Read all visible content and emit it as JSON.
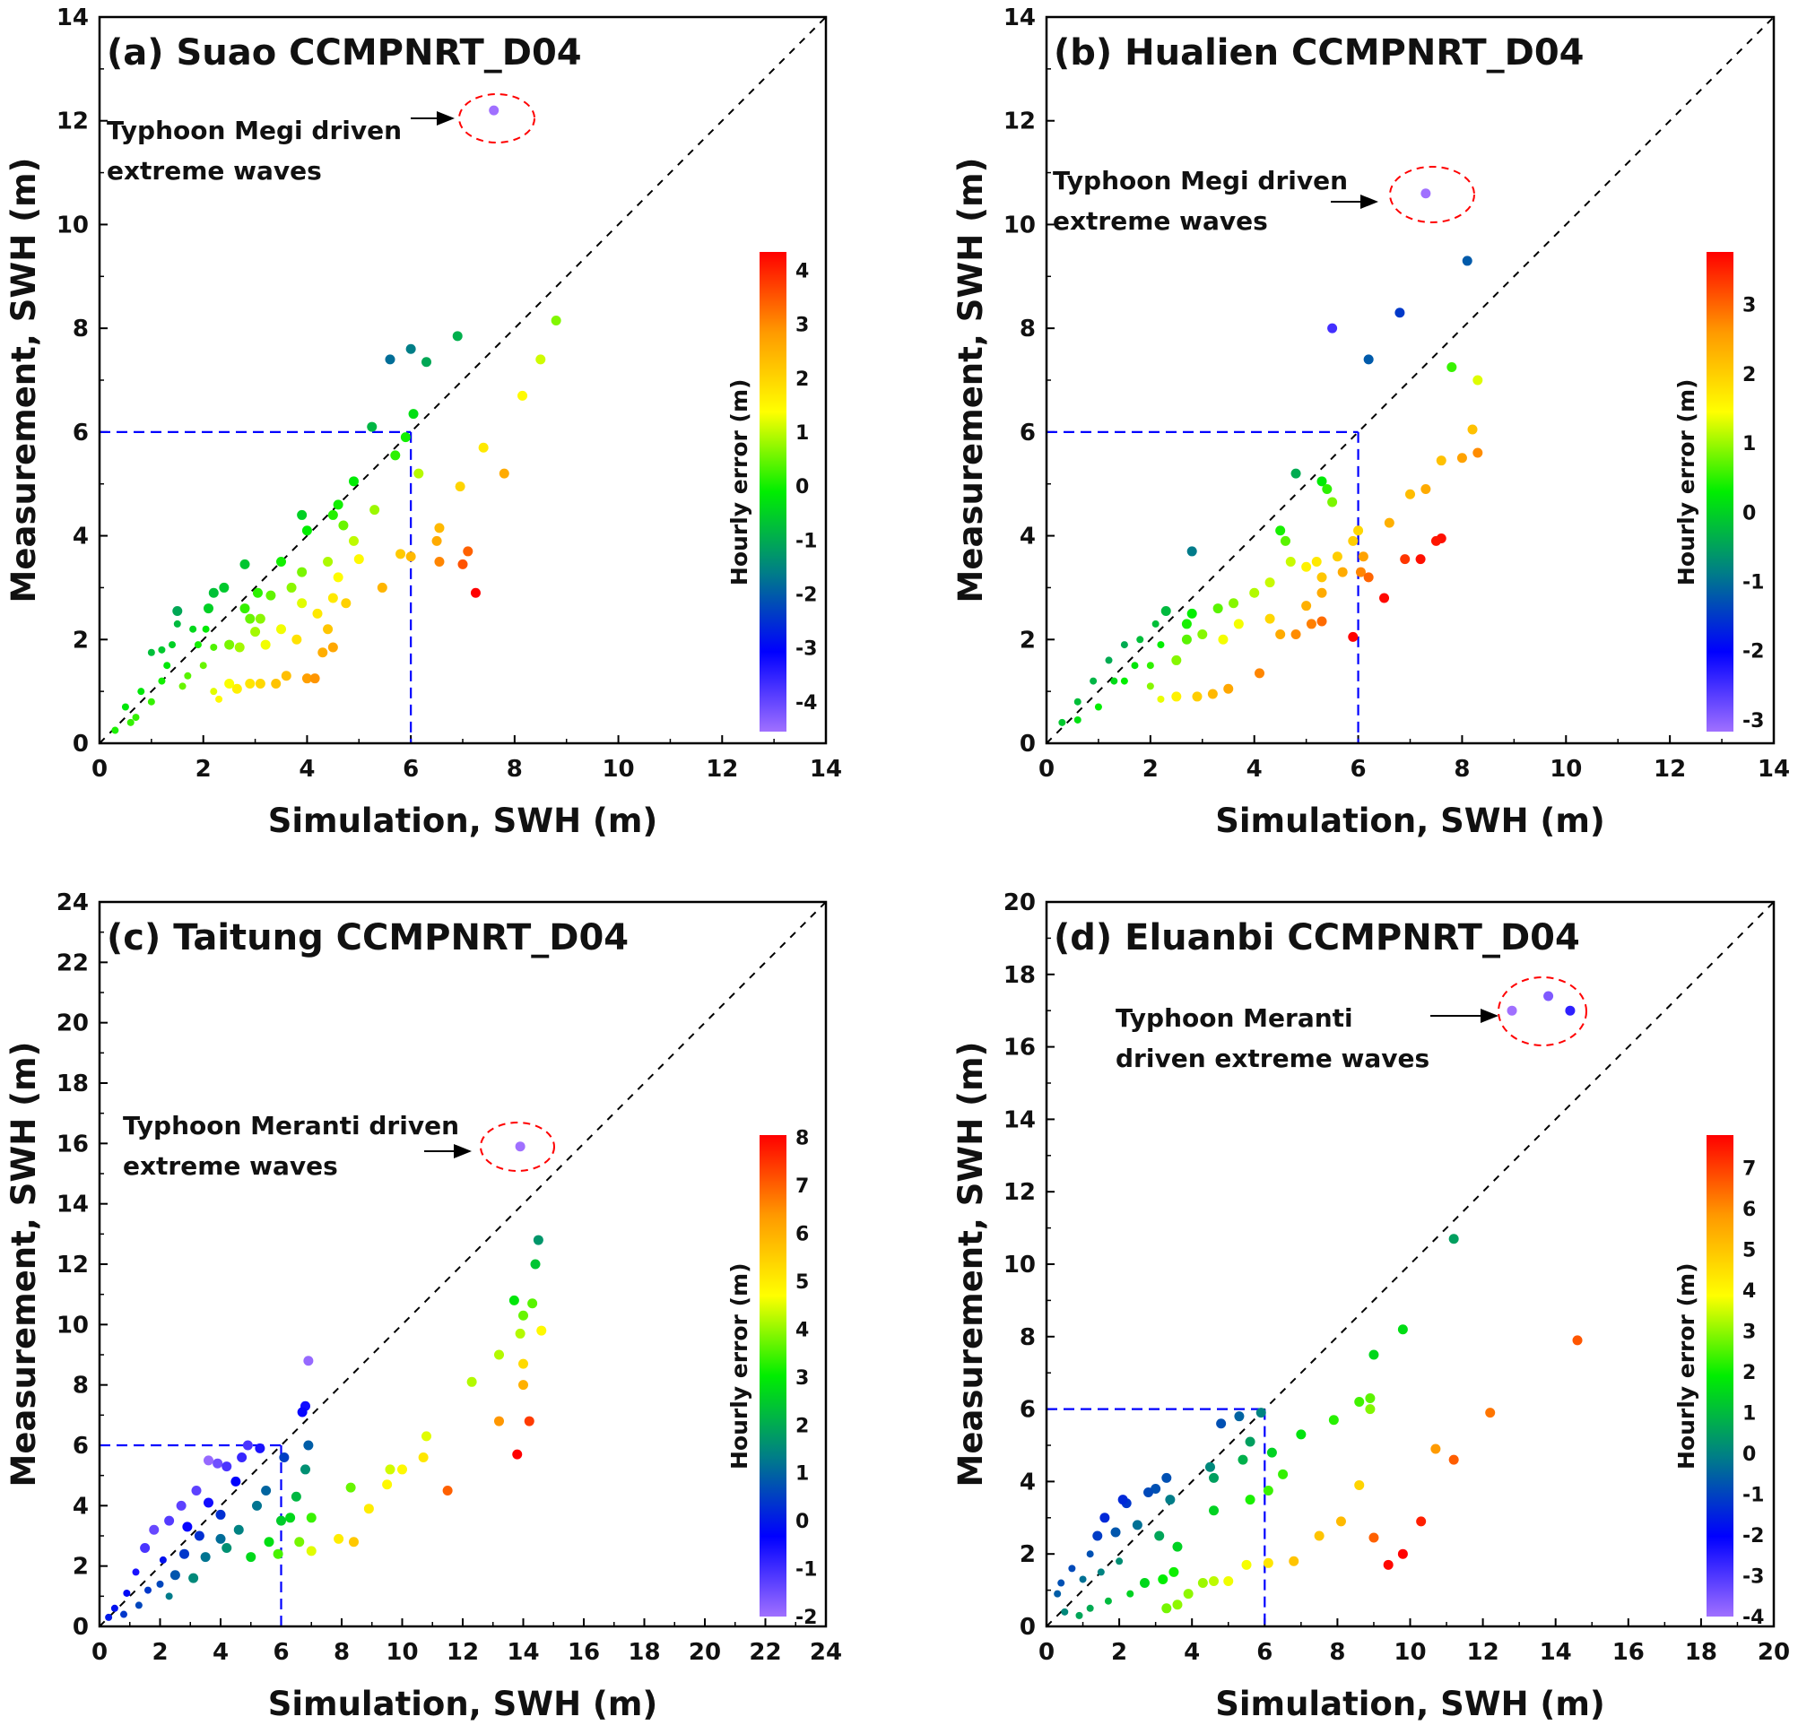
{
  "colors": {
    "diagonal": "#000000",
    "threshold": "#0000ff",
    "highlight": "#ff0000",
    "colormap": [
      "#a070ff",
      "#0000ff",
      "#007f86",
      "#00ee00",
      "#ffff00",
      "#ff9900",
      "#ff0000"
    ]
  },
  "chart_data": [
    {
      "type": "scatter",
      "title": "(a) Suao CCMPNRT_D04",
      "xlabel": "Simulation, SWH (m)",
      "ylabel": "Measurement, SWH (m)",
      "xlim": [
        0,
        14
      ],
      "ylim": [
        0,
        14
      ],
      "ticks": [
        0,
        2,
        4,
        6,
        8,
        10,
        12,
        14
      ],
      "threshold": 6,
      "colorbar": {
        "label": "Hourly error (m)",
        "range": [
          -4.55,
          4.34
        ],
        "ticks": [
          4,
          3,
          2,
          1,
          0,
          -1,
          -2,
          -3,
          -4
        ]
      },
      "annotation": [
        "Typhoon Megi driven",
        "extreme waves"
      ],
      "points": [
        [
          7.6,
          12.2
        ],
        [
          8.8,
          8.15
        ],
        [
          6.9,
          7.85
        ],
        [
          6.0,
          7.6
        ],
        [
          5.6,
          7.4
        ],
        [
          6.3,
          7.35
        ],
        [
          8.5,
          7.4
        ],
        [
          8.15,
          6.7
        ],
        [
          6.05,
          6.35
        ],
        [
          5.25,
          6.1
        ],
        [
          5.9,
          5.9
        ],
        [
          5.7,
          5.55
        ],
        [
          6.15,
          5.2
        ],
        [
          7.4,
          5.7
        ],
        [
          7.8,
          5.2
        ],
        [
          6.95,
          4.95
        ],
        [
          4.9,
          5.05
        ],
        [
          5.3,
          4.5
        ],
        [
          6.55,
          4.15
        ],
        [
          6.5,
          3.9
        ],
        [
          7.1,
          3.7
        ],
        [
          7.0,
          3.45
        ],
        [
          6.55,
          3.5
        ],
        [
          5.8,
          3.65
        ],
        [
          6.0,
          3.6
        ],
        [
          5.45,
          3.0
        ],
        [
          7.25,
          2.9
        ],
        [
          4.6,
          4.6
        ],
        [
          4.5,
          4.4
        ],
        [
          3.9,
          4.4
        ],
        [
          4.0,
          4.1
        ],
        [
          4.7,
          4.2
        ],
        [
          4.9,
          3.9
        ],
        [
          5.0,
          3.55
        ],
        [
          4.4,
          3.5
        ],
        [
          4.6,
          3.2
        ],
        [
          3.9,
          3.3
        ],
        [
          3.5,
          3.5
        ],
        [
          2.8,
          3.45
        ],
        [
          3.7,
          3.0
        ],
        [
          4.2,
          2.5
        ],
        [
          3.9,
          2.7
        ],
        [
          4.5,
          2.8
        ],
        [
          4.75,
          2.7
        ],
        [
          4.4,
          2.2
        ],
        [
          4.5,
          1.85
        ],
        [
          4.3,
          1.75
        ],
        [
          4.0,
          1.25
        ],
        [
          4.15,
          1.25
        ],
        [
          3.6,
          1.3
        ],
        [
          3.4,
          1.15
        ],
        [
          3.1,
          1.15
        ],
        [
          2.9,
          1.15
        ],
        [
          2.65,
          1.05
        ],
        [
          2.5,
          1.15
        ],
        [
          2.3,
          0.85
        ],
        [
          3.2,
          1.9
        ],
        [
          3.5,
          2.2
        ],
        [
          3.8,
          2.0
        ],
        [
          3.0,
          2.15
        ],
        [
          2.7,
          1.85
        ],
        [
          2.5,
          1.9
        ],
        [
          2.2,
          1.85
        ],
        [
          2.4,
          3.0
        ],
        [
          2.2,
          2.9
        ],
        [
          1.5,
          2.55
        ],
        [
          2.1,
          2.6
        ],
        [
          1.8,
          2.2
        ],
        [
          1.5,
          2.3
        ],
        [
          1.2,
          1.8
        ],
        [
          1.0,
          1.75
        ],
        [
          1.3,
          1.5
        ],
        [
          1.7,
          1.3
        ],
        [
          2.0,
          1.5
        ],
        [
          2.2,
          1.0
        ],
        [
          1.6,
          1.1
        ],
        [
          0.8,
          1.0
        ],
        [
          1.0,
          0.8
        ],
        [
          0.6,
          0.4
        ],
        [
          0.5,
          0.7
        ],
        [
          1.2,
          1.2
        ],
        [
          1.9,
          1.9
        ],
        [
          3.05,
          2.9
        ],
        [
          3.3,
          2.85
        ],
        [
          2.8,
          2.6
        ],
        [
          3.1,
          2.4
        ],
        [
          2.9,
          2.4
        ],
        [
          2.05,
          2.2
        ],
        [
          1.4,
          1.9
        ],
        [
          0.3,
          0.25
        ],
        [
          0.7,
          0.5
        ]
      ]
    },
    {
      "type": "scatter",
      "title": "(b) Hualien CCMPNRT_D04",
      "xlabel": "Simulation, SWH (m)",
      "ylabel": "Measurement, SWH (m)",
      "xlim": [
        0,
        14
      ],
      "ylim": [
        0,
        14
      ],
      "ticks": [
        0,
        2,
        4,
        6,
        8,
        10,
        12,
        14
      ],
      "threshold": 6,
      "colorbar": {
        "label": "Hourly error (m)",
        "range": [
          -3.17,
          3.76
        ],
        "ticks": [
          3,
          2,
          1,
          0,
          -1,
          -2,
          -3
        ]
      },
      "annotation": [
        "Typhoon Megi driven",
        "extreme waves"
      ],
      "points": [
        [
          7.3,
          10.6
        ],
        [
          8.1,
          9.3
        ],
        [
          5.5,
          8.0
        ],
        [
          6.8,
          8.3
        ],
        [
          6.2,
          7.4
        ],
        [
          7.8,
          7.25
        ],
        [
          8.3,
          7.0
        ],
        [
          8.2,
          6.05
        ],
        [
          8.3,
          5.6
        ],
        [
          8.0,
          5.5
        ],
        [
          7.6,
          5.45
        ],
        [
          7.0,
          4.8
        ],
        [
          7.3,
          4.9
        ],
        [
          6.6,
          4.25
        ],
        [
          7.6,
          3.95
        ],
        [
          7.5,
          3.9
        ],
        [
          7.2,
          3.55
        ],
        [
          6.9,
          3.55
        ],
        [
          6.5,
          2.8
        ],
        [
          5.9,
          2.05
        ],
        [
          4.8,
          5.2
        ],
        [
          5.3,
          5.05
        ],
        [
          5.4,
          4.9
        ],
        [
          5.5,
          4.65
        ],
        [
          4.5,
          4.1
        ],
        [
          4.6,
          3.9
        ],
        [
          2.8,
          3.7
        ],
        [
          6.0,
          4.1
        ],
        [
          5.9,
          3.9
        ],
        [
          6.1,
          3.6
        ],
        [
          6.05,
          3.3
        ],
        [
          6.2,
          3.2
        ],
        [
          5.6,
          3.6
        ],
        [
          5.2,
          3.5
        ],
        [
          5.7,
          3.3
        ],
        [
          5.3,
          3.2
        ],
        [
          5.0,
          3.4
        ],
        [
          5.3,
          2.9
        ],
        [
          5.0,
          2.65
        ],
        [
          5.1,
          2.3
        ],
        [
          5.3,
          2.35
        ],
        [
          4.8,
          2.1
        ],
        [
          4.5,
          2.1
        ],
        [
          4.1,
          1.35
        ],
        [
          3.5,
          1.05
        ],
        [
          3.2,
          0.95
        ],
        [
          2.9,
          0.9
        ],
        [
          2.5,
          0.9
        ],
        [
          2.2,
          0.85
        ],
        [
          3.7,
          2.3
        ],
        [
          3.4,
          2.0
        ],
        [
          3.0,
          2.1
        ],
        [
          2.7,
          2.0
        ],
        [
          4.3,
          2.4
        ],
        [
          3.6,
          2.7
        ],
        [
          3.3,
          2.6
        ],
        [
          2.8,
          2.5
        ],
        [
          4.0,
          2.9
        ],
        [
          4.3,
          3.1
        ],
        [
          4.7,
          3.5
        ],
        [
          2.3,
          2.55
        ],
        [
          2.1,
          2.3
        ],
        [
          1.8,
          2.0
        ],
        [
          1.5,
          1.9
        ],
        [
          1.2,
          1.6
        ],
        [
          0.9,
          1.2
        ],
        [
          0.6,
          0.8
        ],
        [
          0.3,
          0.4
        ],
        [
          1.5,
          1.2
        ],
        [
          2.0,
          1.5
        ],
        [
          2.5,
          1.6
        ],
        [
          1.0,
          0.7
        ],
        [
          1.7,
          1.5
        ],
        [
          2.2,
          1.9
        ],
        [
          1.3,
          1.2
        ],
        [
          0.6,
          0.45
        ],
        [
          2.0,
          1.1
        ],
        [
          2.7,
          2.3
        ]
      ]
    },
    {
      "type": "scatter",
      "title": "(c) Taitung CCMPNRT_D04",
      "xlabel": "Simulation, SWH (m)",
      "ylabel": "Measurement, SWH (m)",
      "xlim": [
        0,
        24
      ],
      "ylim": [
        0,
        24
      ],
      "ticks": [
        0,
        2,
        4,
        6,
        8,
        10,
        12,
        14,
        16,
        18,
        20,
        22,
        24
      ],
      "threshold": 6,
      "colorbar": {
        "label": "Hourly error (m)",
        "range": [
          -2.0,
          8.05
        ],
        "ticks": [
          8,
          7,
          6,
          5,
          4,
          3,
          2,
          1,
          0,
          -1,
          -2
        ]
      },
      "annotation": [
        "Typhoon Meranti driven",
        "extreme waves"
      ],
      "points": [
        [
          13.9,
          15.9
        ],
        [
          6.9,
          8.8
        ],
        [
          6.8,
          7.3
        ],
        [
          6.7,
          7.1
        ],
        [
          6.9,
          6.0
        ],
        [
          6.1,
          5.6
        ],
        [
          14.5,
          12.8
        ],
        [
          14.4,
          12.0
        ],
        [
          13.7,
          10.8
        ],
        [
          14.3,
          10.7
        ],
        [
          14.0,
          10.3
        ],
        [
          13.9,
          9.7
        ],
        [
          14.6,
          9.8
        ],
        [
          13.2,
          9.0
        ],
        [
          14.0,
          8.7
        ],
        [
          12.3,
          8.1
        ],
        [
          14.0,
          8.0
        ],
        [
          13.2,
          6.8
        ],
        [
          14.2,
          6.8
        ],
        [
          13.8,
          5.7
        ],
        [
          11.5,
          4.5
        ],
        [
          10.8,
          6.3
        ],
        [
          10.7,
          5.6
        ],
        [
          10.0,
          5.2
        ],
        [
          9.6,
          5.2
        ],
        [
          9.5,
          4.7
        ],
        [
          8.9,
          3.9
        ],
        [
          8.3,
          4.6
        ],
        [
          8.4,
          2.8
        ],
        [
          7.9,
          2.9
        ],
        [
          7.0,
          3.6
        ],
        [
          7.0,
          2.5
        ],
        [
          6.6,
          2.8
        ],
        [
          6.8,
          5.2
        ],
        [
          6.5,
          4.3
        ],
        [
          6.3,
          3.6
        ],
        [
          6.0,
          3.5
        ],
        [
          5.9,
          2.4
        ],
        [
          5.0,
          2.3
        ],
        [
          5.5,
          4.5
        ],
        [
          5.2,
          4.0
        ],
        [
          4.9,
          6.0
        ],
        [
          5.3,
          5.9
        ],
        [
          4.7,
          5.6
        ],
        [
          3.9,
          5.4
        ],
        [
          3.6,
          5.5
        ],
        [
          4.2,
          5.3
        ],
        [
          4.5,
          4.8
        ],
        [
          3.2,
          4.5
        ],
        [
          3.6,
          4.1
        ],
        [
          4.0,
          3.7
        ],
        [
          2.7,
          4.0
        ],
        [
          2.3,
          3.5
        ],
        [
          2.9,
          3.3
        ],
        [
          3.3,
          3.0
        ],
        [
          1.8,
          3.2
        ],
        [
          1.5,
          2.6
        ],
        [
          2.1,
          2.2
        ],
        [
          2.8,
          2.4
        ],
        [
          3.5,
          2.3
        ],
        [
          4.2,
          2.6
        ],
        [
          2.5,
          1.7
        ],
        [
          3.1,
          1.6
        ],
        [
          1.2,
          1.8
        ],
        [
          0.9,
          1.1
        ],
        [
          1.6,
          1.2
        ],
        [
          2.0,
          1.4
        ],
        [
          0.5,
          0.6
        ],
        [
          0.3,
          0.3
        ],
        [
          0.8,
          0.4
        ],
        [
          1.3,
          0.7
        ],
        [
          2.3,
          1.0
        ],
        [
          4.6,
          3.2
        ],
        [
          5.6,
          2.8
        ],
        [
          4.0,
          2.9
        ]
      ]
    },
    {
      "type": "scatter",
      "title": "(d) Eluanbi CCMPNRT_D04",
      "xlabel": "Simulation, SWH (m)",
      "ylabel": "Measurement, SWH (m)",
      "xlim": [
        0,
        20
      ],
      "ylim": [
        0,
        20
      ],
      "ticks": [
        0,
        2,
        4,
        6,
        8,
        10,
        12,
        14,
        16,
        18,
        20
      ],
      "threshold": 6,
      "colorbar": {
        "label": "Hourly error (m)",
        "range": [
          -4.0,
          7.8
        ],
        "ticks": [
          7,
          6,
          5,
          4,
          3,
          2,
          1,
          0,
          -1,
          -2,
          -3,
          -4
        ]
      },
      "annotation": [
        "Typhoon Meranti",
        "driven extreme waves"
      ],
      "points": [
        [
          12.8,
          17.0
        ],
        [
          13.8,
          17.4
        ],
        [
          14.4,
          17.0
        ],
        [
          11.2,
          10.7
        ],
        [
          9.8,
          8.2
        ],
        [
          9.0,
          7.5
        ],
        [
          14.6,
          7.9
        ],
        [
          8.6,
          6.2
        ],
        [
          8.9,
          6.3
        ],
        [
          8.9,
          6.0
        ],
        [
          7.9,
          5.7
        ],
        [
          7.0,
          5.3
        ],
        [
          12.2,
          5.9
        ],
        [
          10.7,
          4.9
        ],
        [
          11.2,
          4.6
        ],
        [
          5.9,
          5.9
        ],
        [
          5.3,
          5.8
        ],
        [
          4.8,
          5.6
        ],
        [
          5.6,
          5.1
        ],
        [
          6.2,
          4.8
        ],
        [
          5.4,
          4.6
        ],
        [
          6.5,
          4.2
        ],
        [
          4.5,
          4.4
        ],
        [
          4.6,
          4.1
        ],
        [
          8.6,
          3.9
        ],
        [
          6.1,
          3.75
        ],
        [
          5.6,
          3.5
        ],
        [
          4.6,
          3.2
        ],
        [
          10.3,
          2.9
        ],
        [
          8.1,
          2.9
        ],
        [
          7.5,
          2.5
        ],
        [
          9.0,
          2.45
        ],
        [
          9.8,
          2.0
        ],
        [
          9.4,
          1.7
        ],
        [
          6.8,
          1.8
        ],
        [
          6.1,
          1.75
        ],
        [
          5.5,
          1.7
        ],
        [
          5.0,
          1.25
        ],
        [
          4.6,
          1.25
        ],
        [
          4.3,
          1.2
        ],
        [
          3.9,
          0.9
        ],
        [
          3.6,
          0.6
        ],
        [
          3.3,
          0.5
        ],
        [
          3.6,
          2.2
        ],
        [
          3.1,
          2.5
        ],
        [
          3.4,
          3.5
        ],
        [
          3.3,
          4.1
        ],
        [
          3.0,
          3.8
        ],
        [
          2.8,
          3.7
        ],
        [
          2.2,
          3.4
        ],
        [
          2.1,
          3.5
        ],
        [
          1.6,
          3.0
        ],
        [
          1.4,
          2.5
        ],
        [
          1.9,
          2.6
        ],
        [
          2.5,
          2.8
        ],
        [
          1.2,
          2.0
        ],
        [
          0.7,
          1.6
        ],
        [
          0.4,
          1.2
        ],
        [
          0.3,
          0.9
        ],
        [
          1.0,
          1.3
        ],
        [
          1.5,
          1.5
        ],
        [
          2.0,
          1.8
        ],
        [
          2.7,
          1.2
        ],
        [
          3.2,
          1.3
        ],
        [
          2.3,
          0.9
        ],
        [
          1.7,
          0.7
        ],
        [
          0.9,
          0.3
        ],
        [
          1.2,
          0.5
        ],
        [
          0.5,
          0.4
        ],
        [
          3.5,
          1.5
        ]
      ]
    }
  ]
}
